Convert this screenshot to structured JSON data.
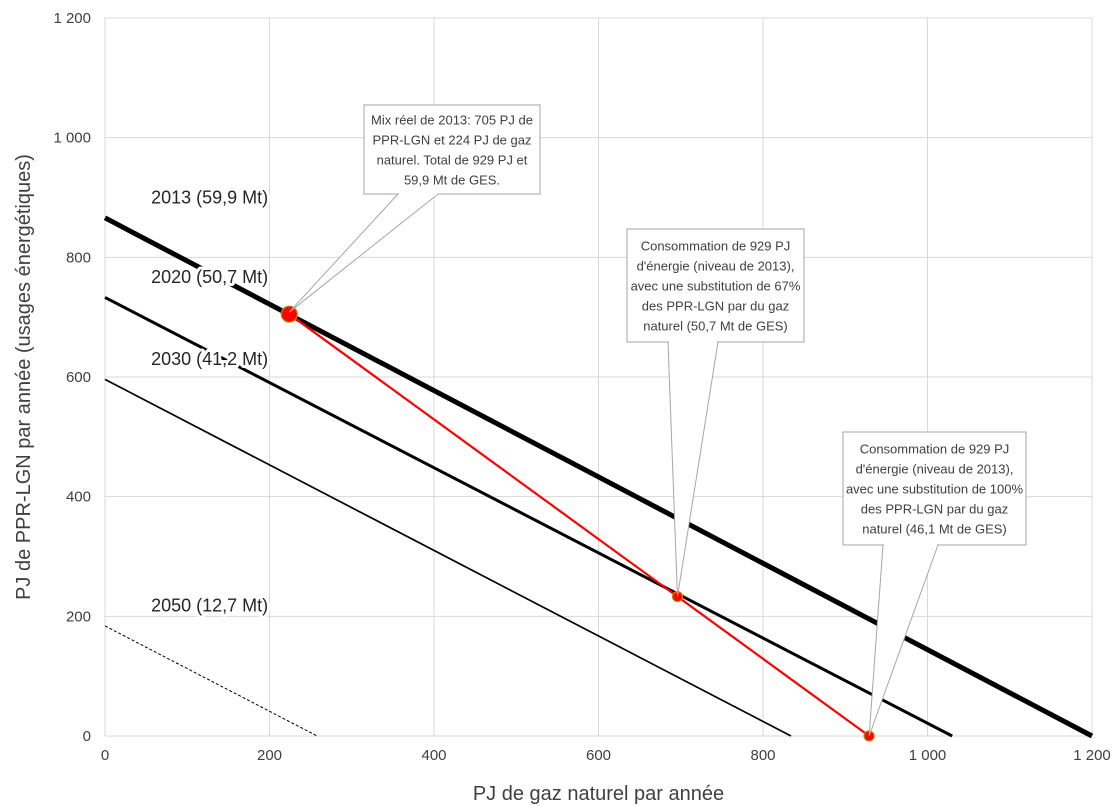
{
  "chart_data": {
    "type": "line",
    "title": "",
    "xlabel": "PJ de gaz naturel par année",
    "ylabel": "PJ de PPR-LGN par année (usages énergétiques)",
    "xlim": [
      0,
      1200
    ],
    "ylim": [
      0,
      1200
    ],
    "grid": true,
    "x_ticks": [
      0,
      200,
      400,
      600,
      800,
      1000,
      1200
    ],
    "y_ticks": [
      0,
      200,
      400,
      600,
      800,
      1000,
      1200
    ],
    "x_tick_labels": [
      "0",
      "200",
      "400",
      "600",
      "800",
      "1 000",
      "1 200"
    ],
    "y_tick_labels": [
      "0",
      "200",
      "400",
      "600",
      "800",
      "1 000",
      "1 200"
    ],
    "series": [
      {
        "name": "2013 (59,9 Mt)",
        "x": [
          0,
          1200
        ],
        "y": [
          866,
          0
        ],
        "color": "#000000",
        "style": "solid",
        "weight": "heavy"
      },
      {
        "name": "2020 (50,7 Mt)",
        "x": [
          0,
          1030
        ],
        "y": [
          733,
          0
        ],
        "color": "#000000",
        "style": "solid",
        "weight": "medium"
      },
      {
        "name": "2030 (41,2 Mt)",
        "x": [
          0,
          834
        ],
        "y": [
          596,
          0
        ],
        "color": "#000000",
        "style": "solid",
        "weight": "thin"
      },
      {
        "name": "2050 (12,7 Mt)",
        "x": [
          0,
          258
        ],
        "y": [
          184,
          0
        ],
        "color": "#000000",
        "style": "dashed",
        "weight": "hair"
      }
    ],
    "substitution_path": {
      "color": "#ff0000",
      "points": [
        {
          "x": 224,
          "y": 705
        },
        {
          "x": 696,
          "y": 233
        },
        {
          "x": 929,
          "y": 0
        }
      ]
    },
    "annotations": [
      {
        "lines": [
          "Mix réel de 2013: 705 PJ de",
          "PPR-LGN et 224 PJ de gaz",
          "naturel. Total de 929 PJ et",
          "59,9 Mt de GES."
        ],
        "target": {
          "x": 224,
          "y": 705
        }
      },
      {
        "lines": [
          "Consommation de 929 PJ",
          "d'énergie (niveau de 2013),",
          "avec une substitution de 67%",
          "des PPR-LGN par du gaz",
          "naturel (50,7 Mt de GES)"
        ],
        "target": {
          "x": 696,
          "y": 233
        }
      },
      {
        "lines": [
          "Consommation de 929 PJ",
          "d'énergie (niveau de 2013),",
          "avec une substitution de 100%",
          "des PPR-LGN par du gaz",
          "naturel (46,1 Mt de GES)"
        ],
        "target": {
          "x": 929,
          "y": 0
        }
      }
    ]
  }
}
